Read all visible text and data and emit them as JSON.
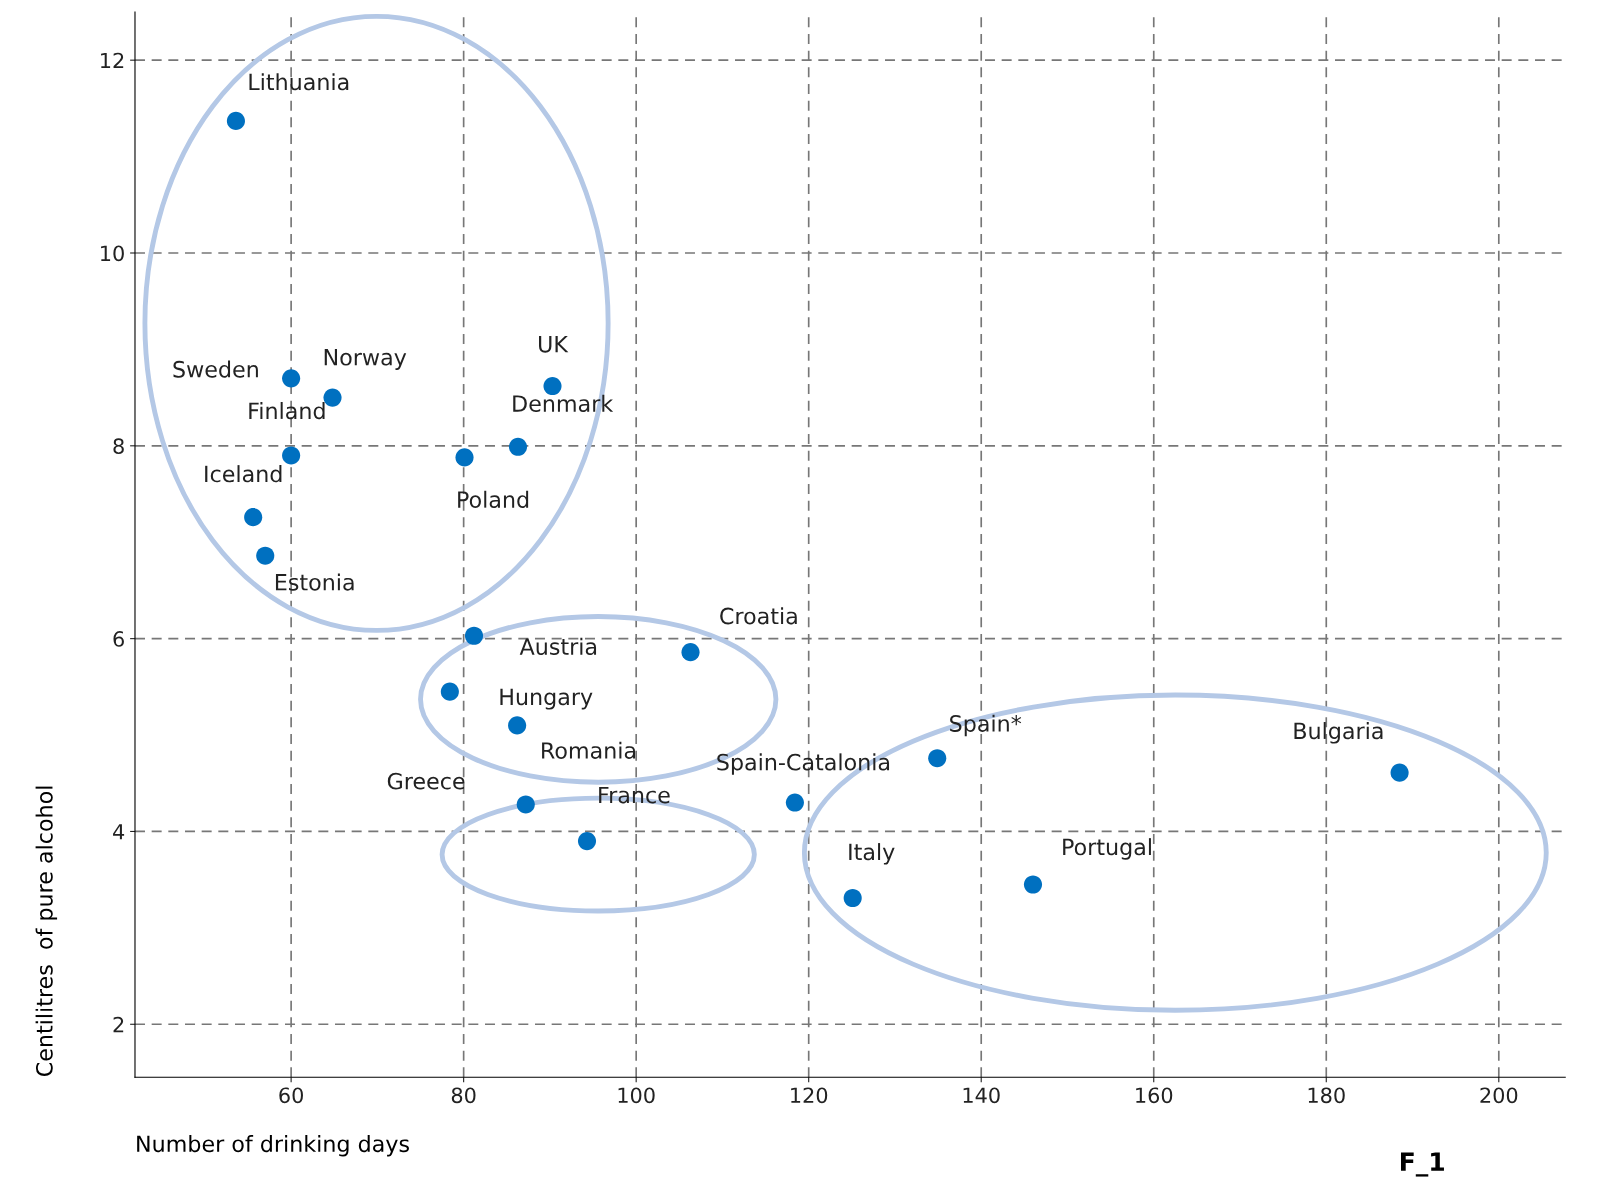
{
  "chart_data": {
    "type": "scatter",
    "xlabel": "Number of drinking days",
    "ylabel": "Centilitres  of pure alcohol",
    "xlim": [
      41.9,
      207.7
    ],
    "ylim": [
      1.45,
      12.5
    ],
    "xticks": [
      60,
      80,
      100,
      120,
      140,
      160,
      180,
      200
    ],
    "yticks": [
      2,
      4,
      6,
      8,
      10,
      12
    ],
    "grid": true,
    "marker": "circle",
    "series": [
      {
        "color": "#0070c0",
        "x": [
          53.6,
          60,
          64.8,
          90.3,
          60,
          80.1,
          86.3,
          55.6,
          57,
          81.2,
          106.3,
          78.4,
          86.2,
          87.2,
          94.3,
          118.4,
          134.9,
          188.5,
          125.1,
          146
        ],
        "values": [
          11.37,
          8.7,
          8.5,
          8.62,
          7.9,
          7.88,
          7.99,
          7.26,
          6.86,
          6.03,
          5.86,
          5.45,
          5.1,
          4.28,
          3.9,
          4.3,
          4.76,
          4.61,
          3.31,
          3.45
        ]
      }
    ],
    "annotations": [
      {
        "text": "Lithuania",
        "x": 53.6,
        "y": 11.37
      },
      {
        "text": "Sweden",
        "x": 60,
        "y": 8.7
      },
      {
        "text": "Norway",
        "x": 64.8,
        "y": 8.5
      },
      {
        "text": "UK",
        "x": 90.3,
        "y": 8.62
      },
      {
        "text": "Finland",
        "x": 60,
        "y": 7.9
      },
      {
        "text": "Poland",
        "x": 80.1,
        "y": 7.88
      },
      {
        "text": "Denmark",
        "x": 86.3,
        "y": 7.99
      },
      {
        "text": "Iceland",
        "x": 55.6,
        "y": 7.26
      },
      {
        "text": "Estonia",
        "x": 57,
        "y": 6.86
      },
      {
        "text": "Austria",
        "x": 81.2,
        "y": 6.03
      },
      {
        "text": "Croatia",
        "x": 106.3,
        "y": 5.86
      },
      {
        "text": "Hungary",
        "x": 78.4,
        "y": 5.45
      },
      {
        "text": "Romania",
        "x": 86.2,
        "y": 5.1
      },
      {
        "text": "Greece",
        "x": 87.2,
        "y": 4.28
      },
      {
        "text": "France",
        "x": 94.3,
        "y": 3.9
      },
      {
        "text": "Spain-Catalonia",
        "x": 118.4,
        "y": 4.3
      },
      {
        "text": "Spain*",
        "x": 134.9,
        "y": 4.76
      },
      {
        "text": "Bulgaria",
        "x": 188.5,
        "y": 4.61
      },
      {
        "text": "Italy",
        "x": 125.1,
        "y": 3.31
      },
      {
        "text": "Portugal",
        "x": 146,
        "y": 3.45
      },
      "F_1"
    ]
  }
}
